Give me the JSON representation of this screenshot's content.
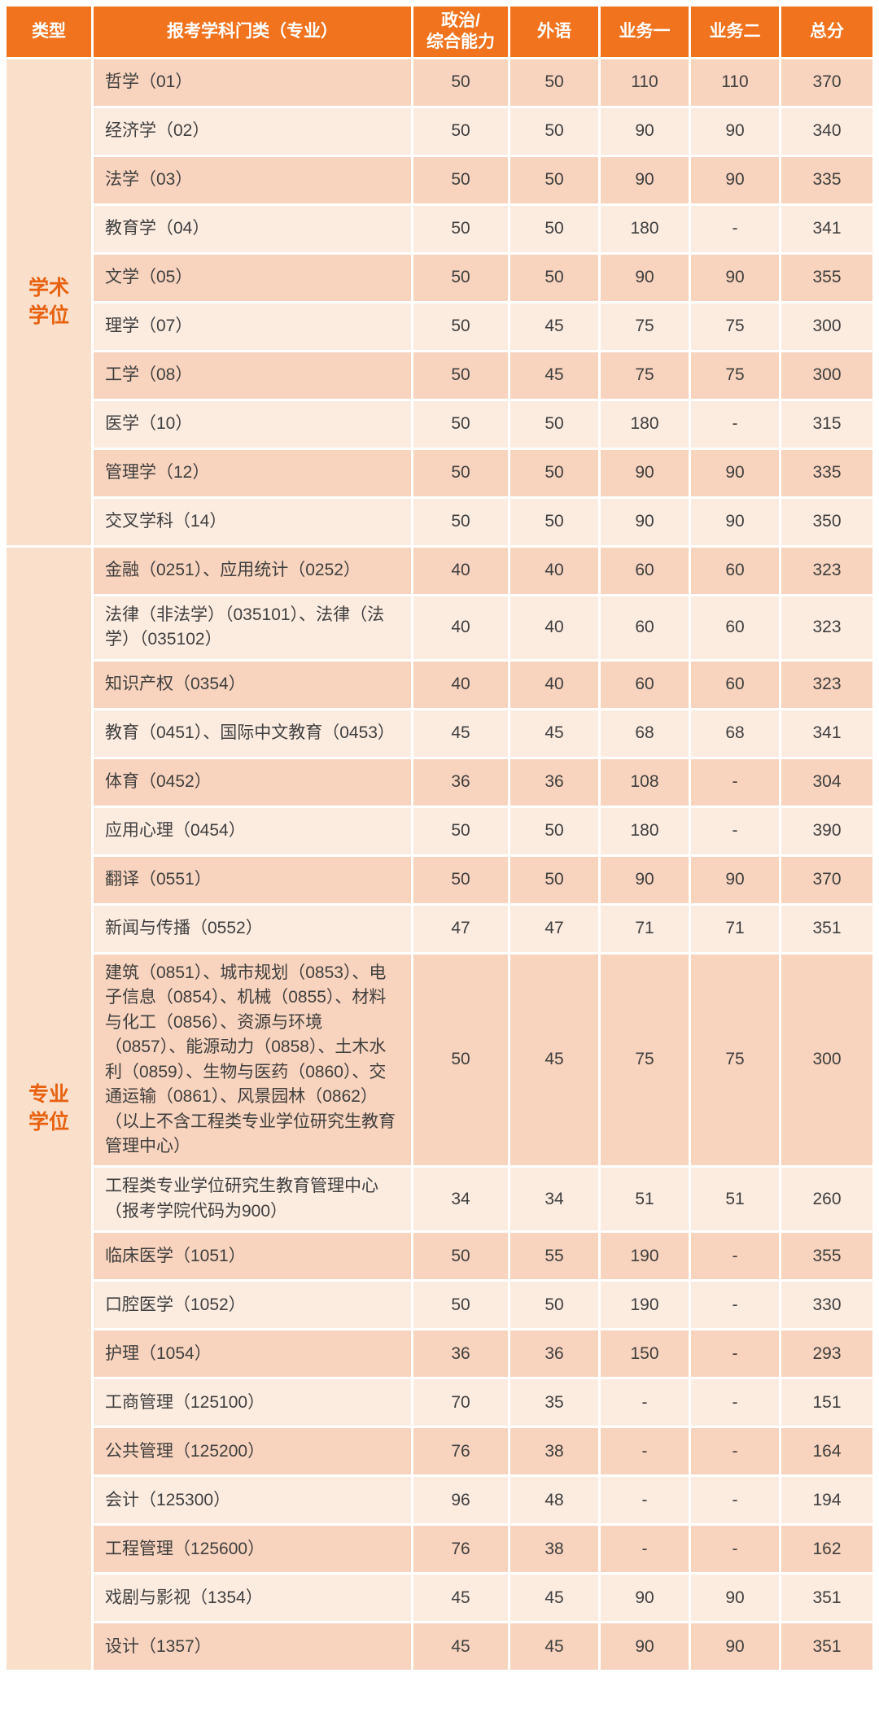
{
  "colors": {
    "header_bg": "#F1731D",
    "header_text": "#FFFFFF",
    "row_dark": "#F8D3BD",
    "row_light": "#FCEBDF",
    "type_cell_bg": "#FADFCB",
    "type_cell_text": "#E8610F",
    "cell_text": "#3F3F3F"
  },
  "table": {
    "header": {
      "type": "类型",
      "major": "报考学科门类（专业）",
      "politics": "政治/\n综合能力",
      "foreign": "外语",
      "business1": "业务一",
      "business2": "业务二",
      "total": "总分"
    },
    "sections": [
      {
        "type_label": "学术\n学位",
        "type_label_text": "学术学位",
        "rows": [
          {
            "name": "哲学（01）",
            "scores": [
              "50",
              "50",
              "110",
              "110",
              "370"
            ]
          },
          {
            "name": "经济学（02）",
            "scores": [
              "50",
              "50",
              "90",
              "90",
              "340"
            ]
          },
          {
            "name": "法学（03）",
            "scores": [
              "50",
              "50",
              "90",
              "90",
              "335"
            ]
          },
          {
            "name": "教育学（04）",
            "scores": [
              "50",
              "50",
              "180",
              "-",
              "341"
            ]
          },
          {
            "name": "文学（05）",
            "scores": [
              "50",
              "50",
              "90",
              "90",
              "355"
            ]
          },
          {
            "name": "理学（07）",
            "scores": [
              "50",
              "45",
              "75",
              "75",
              "300"
            ]
          },
          {
            "name": "工学（08）",
            "scores": [
              "50",
              "45",
              "75",
              "75",
              "300"
            ]
          },
          {
            "name": "医学（10）",
            "scores": [
              "50",
              "50",
              "180",
              "-",
              "315"
            ]
          },
          {
            "name": "管理学（12）",
            "scores": [
              "50",
              "50",
              "90",
              "90",
              "335"
            ]
          },
          {
            "name": "交叉学科（14）",
            "scores": [
              "50",
              "50",
              "90",
              "90",
              "350"
            ]
          }
        ]
      },
      {
        "type_label": "专业\n学位",
        "type_label_text": "专业学位",
        "rows": [
          {
            "name": "金融（0251）、应用统计（0252）",
            "scores": [
              "40",
              "40",
              "60",
              "60",
              "323"
            ]
          },
          {
            "name": "法律（非法学）（035101）、法律（法学）（035102）",
            "scores": [
              "40",
              "40",
              "60",
              "60",
              "323"
            ]
          },
          {
            "name": "知识产权（0354）",
            "scores": [
              "40",
              "40",
              "60",
              "60",
              "323"
            ]
          },
          {
            "name": "教育（0451）、国际中文教育（0453）",
            "scores": [
              "45",
              "45",
              "68",
              "68",
              "341"
            ]
          },
          {
            "name": "体育（0452）",
            "scores": [
              "36",
              "36",
              "108",
              "-",
              "304"
            ]
          },
          {
            "name": "应用心理（0454）",
            "scores": [
              "50",
              "50",
              "180",
              "-",
              "390"
            ]
          },
          {
            "name": "翻译（0551）",
            "scores": [
              "50",
              "50",
              "90",
              "90",
              "370"
            ]
          },
          {
            "name": "新闻与传播（0552）",
            "scores": [
              "47",
              "47",
              "71",
              "71",
              "351"
            ]
          },
          {
            "name": "建筑（0851）、城市规划（0853）、电子信息（0854）、机械（0855）、材料与化工（0856）、资源与环境（0857）、能源动力（0858）、土木水利（0859）、生物与医药（0860）、交通运输（0861）、风景园林（0862）（以上不含工程类专业学位研究生教育管理中心）",
            "scores": [
              "50",
              "45",
              "75",
              "75",
              "300"
            ]
          },
          {
            "name": "工程类专业学位研究生教育管理中心（报考学院代码为900）",
            "scores": [
              "34",
              "34",
              "51",
              "51",
              "260"
            ]
          },
          {
            "name": "临床医学（1051）",
            "scores": [
              "50",
              "55",
              "190",
              "-",
              "355"
            ]
          },
          {
            "name": "口腔医学（1052）",
            "scores": [
              "50",
              "50",
              "190",
              "-",
              "330"
            ]
          },
          {
            "name": "护理（1054）",
            "scores": [
              "36",
              "36",
              "150",
              "-",
              "293"
            ]
          },
          {
            "name": "工商管理（125100）",
            "scores": [
              "70",
              "35",
              "-",
              "-",
              "151"
            ]
          },
          {
            "name": "公共管理（125200）",
            "scores": [
              "76",
              "38",
              "-",
              "-",
              "164"
            ]
          },
          {
            "name": "会计（125300）",
            "scores": [
              "96",
              "48",
              "-",
              "-",
              "194"
            ]
          },
          {
            "name": "工程管理（125600）",
            "scores": [
              "76",
              "38",
              "-",
              "-",
              "162"
            ]
          },
          {
            "name": "戏剧与影视（1354）",
            "scores": [
              "45",
              "45",
              "90",
              "90",
              "351"
            ]
          },
          {
            "name": "设计（1357）",
            "scores": [
              "45",
              "45",
              "90",
              "90",
              "351"
            ]
          }
        ]
      }
    ]
  }
}
